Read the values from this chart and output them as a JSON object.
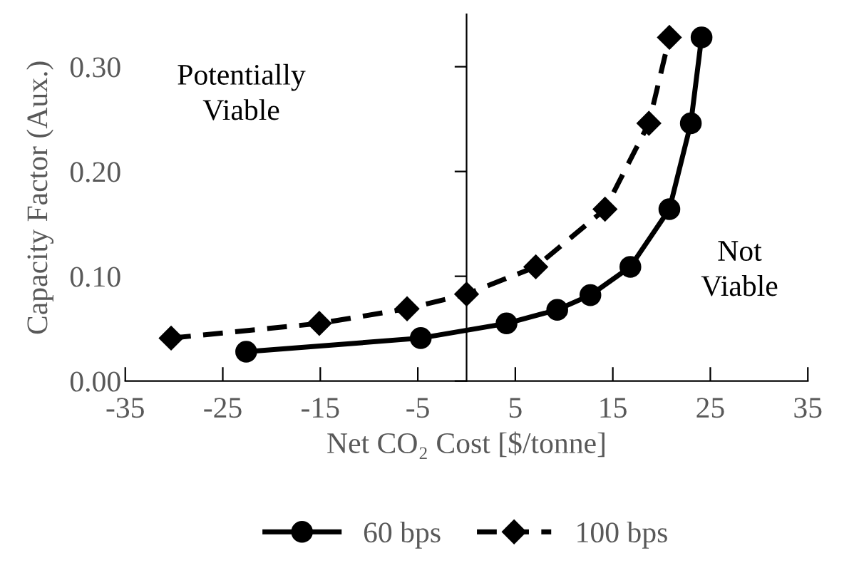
{
  "chart_data": {
    "type": "line",
    "xlabel": "Net CO₂ Cost [$/tonne]",
    "ylabel": "Capacity Factor (Aux.)",
    "annotations": [
      "Potentially\nViable",
      "Not\nViable"
    ],
    "series": [
      {
        "name": "60 bps",
        "color": "#000000",
        "marker": "circle",
        "line_style": "solid",
        "x": [
          -22.6,
          -4.7,
          4.1,
          9.3,
          12.7,
          16.8,
          20.8,
          23.0,
          24.1
        ],
        "values": [
          0.028,
          0.041,
          0.055,
          0.068,
          0.082,
          0.109,
          0.164,
          0.246,
          0.328
        ]
      },
      {
        "name": "100 bps",
        "color": "#000000",
        "marker": "diamond",
        "line_style": "dashed",
        "x": [
          -30.3,
          -15.1,
          -6.1,
          0.0,
          7.1,
          14.2,
          18.7,
          20.8
        ],
        "values": [
          0.041,
          0.055,
          0.069,
          0.083,
          0.109,
          0.164,
          0.246,
          0.328
        ]
      }
    ],
    "xlim": [
      -35,
      35
    ],
    "xticks": [
      -35,
      -25,
      -15,
      -5,
      5,
      15,
      25,
      35
    ],
    "ylim": [
      0,
      0.35
    ],
    "yticks": [
      {
        "value": 0,
        "label": "0.00"
      },
      {
        "value": 0.1,
        "label": "0.10"
      },
      {
        "value": 0.2,
        "label": "0.20"
      },
      {
        "value": 0.3,
        "label": "0.30"
      }
    ],
    "grid": false,
    "legend": "bottom"
  }
}
